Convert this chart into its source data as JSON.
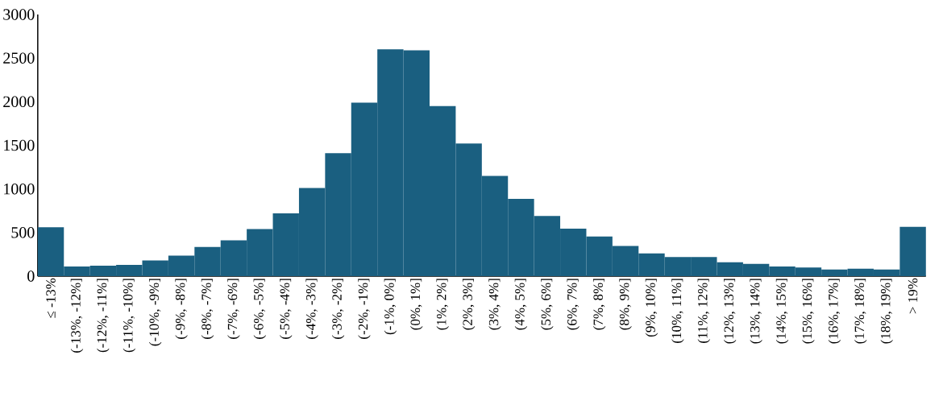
{
  "chart_data": {
    "type": "bar",
    "categories": [
      "≤ -13%",
      "(-13%, -12%]",
      "(-12%, -11%]",
      "(-11%, -10%]",
      "(-10%, -9%]",
      "(-9%, -8%]",
      "(-8%, -7%]",
      "(-7%, -6%]",
      "(-6%, -5%]",
      "(-5%, -4%]",
      "(-4%, -3%]",
      "(-3%, -2%]",
      "(-2%, -1%]",
      "(-1%, 0%]",
      "(0%, 1%]",
      "(1%, 2%]",
      "(2%, 3%]",
      "(3%, 4%]",
      "(4%, 5%]",
      "(5%, 6%]",
      "(6%, 7%]",
      "(7%, 8%]",
      "(8%, 9%]",
      "(9%, 10%]",
      "(10%, 11%]",
      "(11%, 12%]",
      "(12%, 13%]",
      "(13%, 14%]",
      "(14%, 15%]",
      "(15%, 16%]",
      "(16%, 17%]",
      "(17%, 18%]",
      "(18%, 19%]",
      "> 19%"
    ],
    "values": [
      560,
      110,
      120,
      130,
      180,
      235,
      335,
      410,
      540,
      720,
      1010,
      1410,
      1990,
      2600,
      2590,
      1950,
      1520,
      1150,
      885,
      690,
      545,
      455,
      345,
      260,
      220,
      220,
      160,
      140,
      110,
      100,
      75,
      85,
      75,
      565
    ],
    "color": "#1a5f80",
    "ylim": [
      0,
      3000
    ],
    "yticks": [
      0,
      500,
      1000,
      1500,
      2000,
      2500,
      3000
    ]
  }
}
